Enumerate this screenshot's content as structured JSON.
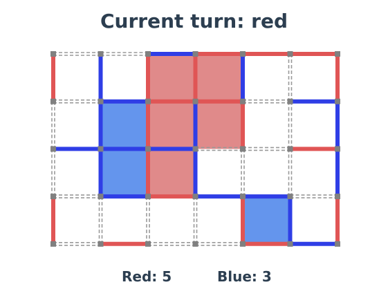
{
  "status": {
    "prefix": "Current turn: ",
    "turn": "red",
    "text": "Current turn: red"
  },
  "colors": {
    "red": "#e05555",
    "blue": "#2f3ee6",
    "red_box": "#e08a8a",
    "blue_box": "#6495ed",
    "undrawn": "#999999",
    "dot": "#808080",
    "text": "#2c3e50"
  },
  "board": {
    "cols": 6,
    "rows": 4,
    "h_lines": [
      [
        "none",
        "none",
        "blue",
        "red",
        "red",
        "red"
      ],
      [
        "none",
        "blue",
        "red",
        "red",
        "none",
        "blue"
      ],
      [
        "blue",
        "blue",
        "blue",
        "none",
        "none",
        "red"
      ],
      [
        "none",
        "blue",
        "red",
        "blue",
        "blue",
        "none"
      ],
      [
        "none",
        "red",
        "none",
        "none",
        "red",
        "blue"
      ]
    ],
    "v_lines": [
      [
        "red",
        "blue",
        "red",
        "red",
        "blue",
        "none",
        "red"
      ],
      [
        "none",
        "blue",
        "red",
        "blue",
        "red",
        "none",
        "blue"
      ],
      [
        "none",
        "blue",
        "red",
        "blue",
        "none",
        "none",
        "blue"
      ],
      [
        "red",
        "none",
        "none",
        "none",
        "red",
        "blue",
        "red"
      ]
    ],
    "boxes": [
      [
        "none",
        "none",
        "red",
        "red",
        "none",
        "none"
      ],
      [
        "none",
        "blue",
        "red",
        "red",
        "none",
        "none"
      ],
      [
        "none",
        "blue",
        "red",
        "none",
        "none",
        "none"
      ],
      [
        "none",
        "none",
        "none",
        "none",
        "blue",
        "none"
      ]
    ]
  },
  "scores": {
    "red_label": "Red: 5",
    "blue_label": "Blue: 3",
    "red": 5,
    "blue": 3
  }
}
